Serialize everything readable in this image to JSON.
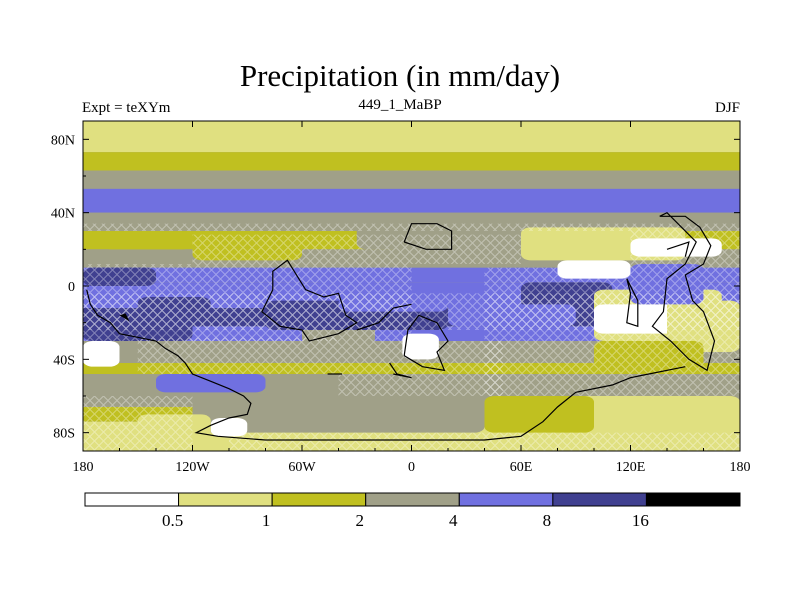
{
  "title": "Precipitation (in mm/day)",
  "left_label": "Expt = teXYm",
  "center_label": "449_1_MaBP",
  "right_label": "DJF",
  "map": {
    "lon_range": [
      -180,
      180
    ],
    "lat_range": [
      -90,
      90
    ],
    "x_ticks": [
      {
        "value": -180,
        "label": "180"
      },
      {
        "value": -120,
        "label": "120W"
      },
      {
        "value": -60,
        "label": "60W"
      },
      {
        "value": 0,
        "label": "0"
      },
      {
        "value": 60,
        "label": "60E"
      },
      {
        "value": 120,
        "label": "120E"
      },
      {
        "value": 180,
        "label": "180"
      }
    ],
    "y_ticks": [
      {
        "value": 80,
        "label": "80N"
      },
      {
        "value": 40,
        "label": "40N"
      },
      {
        "value": 0,
        "label": "0"
      },
      {
        "value": -40,
        "label": "40S"
      },
      {
        "value": -80,
        "label": "80S"
      }
    ]
  },
  "colorbar": {
    "levels": [
      "0.5",
      "1",
      "2",
      "4",
      "8",
      "16"
    ],
    "colors": [
      "#ffffff",
      "#e0e080",
      "#c0c020",
      "#a0a088",
      "#7070e0",
      "#404090",
      "#000000"
    ]
  },
  "precip_bands": [
    {
      "lat_top": 90,
      "lat_bot": 84,
      "class": 1
    },
    {
      "lat_top": 84,
      "lat_bot": 73,
      "class": 1
    },
    {
      "lat_top": 73,
      "lat_bot": 63,
      "class": 2
    },
    {
      "lat_top": 63,
      "lat_bot": 53,
      "class": 3
    },
    {
      "lat_top": 53,
      "lat_bot": 40,
      "class": 4
    },
    {
      "lat_top": 40,
      "lat_bot": 30,
      "class": 3
    },
    {
      "lat_top": 30,
      "lat_bot": 20,
      "class": 2
    },
    {
      "lat_top": 20,
      "lat_bot": 10,
      "class": 3
    },
    {
      "lat_top": 10,
      "lat_bot": 2,
      "class": 4
    },
    {
      "lat_top": 2,
      "lat_bot": -12,
      "class": 4
    },
    {
      "lat_top": -12,
      "lat_bot": -22,
      "class": 5
    },
    {
      "lat_top": -22,
      "lat_bot": -30,
      "class": 4
    },
    {
      "lat_top": -30,
      "lat_bot": -42,
      "class": 3
    },
    {
      "lat_top": -42,
      "lat_bot": -48,
      "class": 2
    },
    {
      "lat_top": -48,
      "lat_bot": -56,
      "class": 3
    },
    {
      "lat_top": -56,
      "lat_bot": -66,
      "class": 3
    },
    {
      "lat_top": -66,
      "lat_bot": -74,
      "class": 2
    },
    {
      "lat_top": -74,
      "lat_bot": -84,
      "class": 1
    },
    {
      "lat_top": -84,
      "lat_bot": -90,
      "class": 1
    }
  ],
  "precip_patches": [
    {
      "lon": [
        -180,
        -160
      ],
      "lat": [
        -30,
        -44
      ],
      "class": 0
    },
    {
      "lon": [
        -5,
        15
      ],
      "lat": [
        -26,
        -40
      ],
      "class": 0
    },
    {
      "lon": [
        -60,
        -20
      ],
      "lat": [
        -12,
        -32
      ],
      "class": 3
    },
    {
      "lon": [
        -180,
        -120
      ],
      "lat": [
        -14,
        -30
      ],
      "class": 5
    },
    {
      "lon": [
        -80,
        20
      ],
      "lat": [
        -8,
        -24
      ],
      "class": 5
    },
    {
      "lon": [
        60,
        110
      ],
      "lat": [
        2,
        -12
      ],
      "class": 5
    },
    {
      "lon": [
        -180,
        -140
      ],
      "lat": [
        10,
        0
      ],
      "class": 5
    },
    {
      "lon": [
        -40,
        20
      ],
      "lat": [
        -6,
        -14
      ],
      "class": 4
    },
    {
      "lon": [
        -140,
        -80
      ],
      "lat": [
        -48,
        -58
      ],
      "class": 4
    },
    {
      "lon": [
        -120,
        40
      ],
      "lat": [
        -60,
        -80
      ],
      "class": 3
    },
    {
      "lon": [
        -110,
        -90
      ],
      "lat": [
        -72,
        -82
      ],
      "class": 0
    },
    {
      "lon": [
        -150,
        -110
      ],
      "lat": [
        -70,
        -86
      ],
      "class": 1
    },
    {
      "lon": [
        80,
        180
      ],
      "lat": [
        -60,
        -86
      ],
      "class": 1
    },
    {
      "lon": [
        40,
        100
      ],
      "lat": [
        -60,
        -80
      ],
      "class": 2
    },
    {
      "lon": [
        -170,
        -120
      ],
      "lat": [
        30,
        20
      ],
      "class": 2
    },
    {
      "lon": [
        -120,
        -60
      ],
      "lat": [
        30,
        14
      ],
      "class": 2
    },
    {
      "lon": [
        -30,
        40
      ],
      "lat": [
        34,
        20
      ],
      "class": 3
    },
    {
      "lon": [
        -10,
        70
      ],
      "lat": [
        32,
        12
      ],
      "class": 3
    },
    {
      "lon": [
        60,
        150
      ],
      "lat": [
        32,
        14
      ],
      "class": 1
    },
    {
      "lon": [
        80,
        120
      ],
      "lat": [
        14,
        4
      ],
      "class": 0
    },
    {
      "lon": [
        100,
        170
      ],
      "lat": [
        -2,
        -30
      ],
      "class": 1
    },
    {
      "lon": [
        100,
        160
      ],
      "lat": [
        -10,
        -26
      ],
      "class": 0
    },
    {
      "lon": [
        140,
        180
      ],
      "lat": [
        -8,
        -36
      ],
      "class": 1
    },
    {
      "lon": [
        120,
        170
      ],
      "lat": [
        26,
        16
      ],
      "class": 0
    },
    {
      "lon": [
        100,
        160
      ],
      "lat": [
        -30,
        -46
      ],
      "class": 2
    },
    {
      "lon": [
        120,
        160
      ],
      "lat": [
        12,
        -10
      ],
      "class": 4
    },
    {
      "lon": [
        -150,
        -110
      ],
      "lat": [
        -6,
        -22
      ],
      "class": 5
    },
    {
      "lon": [
        -50,
        -20
      ],
      "lat": [
        4,
        -8
      ],
      "class": 4
    },
    {
      "lon": [
        20,
        90
      ],
      "lat": [
        -10,
        -22
      ],
      "class": 4
    }
  ],
  "hatched_regions": [
    {
      "lon": [
        -180,
        180
      ],
      "lat": [
        -4,
        -24
      ]
    },
    {
      "lon": [
        -180,
        0
      ],
      "lat": [
        12,
        -30
      ]
    },
    {
      "lon": [
        -150,
        -40
      ],
      "lat": [
        -28,
        -48
      ]
    },
    {
      "lon": [
        -120,
        60
      ],
      "lat": [
        28,
        12
      ]
    },
    {
      "lon": [
        -40,
        50
      ],
      "lat": [
        -30,
        -60
      ]
    },
    {
      "lon": [
        40,
        180
      ],
      "lat": [
        10,
        -60
      ]
    },
    {
      "lon": [
        -180,
        -120
      ],
      "lat": [
        -60,
        -90
      ]
    },
    {
      "lon": [
        -100,
        180
      ],
      "lat": [
        -80,
        -90
      ]
    },
    {
      "lon": [
        120,
        180
      ],
      "lat": [
        30,
        10
      ]
    },
    {
      "lon": [
        -180,
        180
      ],
      "lat": [
        34,
        30
      ]
    }
  ],
  "outlines": [
    {
      "points": [
        [
          -178,
          -2
        ],
        [
          -176,
          -10
        ],
        [
          -172,
          -16
        ],
        [
          -165,
          -20
        ],
        [
          -160,
          -26
        ],
        [
          -150,
          -28
        ],
        [
          -140,
          -30
        ],
        [
          -135,
          -34
        ],
        [
          -128,
          -38
        ],
        [
          -124,
          -42
        ],
        [
          -120,
          -48
        ],
        [
          -110,
          -52
        ],
        [
          -100,
          -56
        ],
        [
          -92,
          -60
        ],
        [
          -88,
          -64
        ],
        [
          -90,
          -70
        ],
        [
          -100,
          -72
        ],
        [
          -110,
          -76
        ],
        [
          -118,
          -80
        ],
        [
          -106,
          -82
        ],
        [
          -80,
          -84
        ],
        [
          -40,
          -84
        ],
        [
          0,
          -84
        ],
        [
          40,
          -84
        ],
        [
          60,
          -82
        ],
        [
          72,
          -74
        ],
        [
          80,
          -66
        ],
        [
          90,
          -58
        ],
        [
          110,
          -54
        ],
        [
          120,
          -50
        ],
        [
          130,
          -48
        ],
        [
          150,
          -44
        ]
      ]
    },
    {
      "points": [
        [
          -76,
          -2
        ],
        [
          -76,
          8
        ],
        [
          -68,
          14
        ],
        [
          -58,
          -2
        ],
        [
          -48,
          -6
        ],
        [
          -40,
          -4
        ],
        [
          -36,
          -16
        ],
        [
          -30,
          -20
        ],
        [
          -40,
          -26
        ],
        [
          -56,
          -30
        ],
        [
          -60,
          -24
        ],
        [
          -72,
          -22
        ],
        [
          -82,
          -14
        ],
        [
          -76,
          -2
        ]
      ]
    },
    {
      "points": [
        [
          -4,
          24
        ],
        [
          0,
          34
        ],
        [
          14,
          34
        ],
        [
          22,
          30
        ],
        [
          22,
          20
        ],
        [
          8,
          20
        ],
        [
          -4,
          24
        ]
      ]
    },
    {
      "points": [
        [
          -2,
          -24
        ],
        [
          -4,
          -38
        ],
        [
          6,
          -44
        ],
        [
          18,
          -46
        ],
        [
          14,
          -36
        ],
        [
          20,
          -30
        ],
        [
          14,
          -20
        ],
        [
          4,
          -16
        ],
        [
          -2,
          -24
        ]
      ]
    },
    {
      "points": [
        [
          -12,
          -42
        ],
        [
          -8,
          -48
        ],
        [
          0,
          -50
        ],
        [
          -10,
          -48
        ]
      ]
    },
    {
      "points": [
        [
          -46,
          -48
        ],
        [
          -38,
          -48
        ]
      ]
    },
    {
      "points": [
        [
          118,
          4
        ],
        [
          120,
          -4
        ],
        [
          118,
          -20
        ],
        [
          124,
          -22
        ],
        [
          124,
          -8
        ],
        [
          118,
          4
        ]
      ]
    },
    {
      "points": [
        [
          136,
          38
        ],
        [
          140,
          40
        ],
        [
          148,
          32
        ],
        [
          156,
          24
        ],
        [
          150,
          12
        ],
        [
          140,
          4
        ],
        [
          138,
          -14
        ],
        [
          132,
          -22
        ],
        [
          142,
          -30
        ],
        [
          152,
          -40
        ],
        [
          162,
          -46
        ],
        [
          166,
          -30
        ],
        [
          160,
          -14
        ],
        [
          154,
          -8
        ],
        [
          150,
          6
        ],
        [
          160,
          12
        ],
        [
          164,
          22
        ],
        [
          158,
          32
        ],
        [
          150,
          38
        ],
        [
          136,
          38
        ]
      ]
    },
    {
      "points": [
        [
          140,
          20
        ],
        [
          146,
          22
        ],
        [
          152,
          24
        ],
        [
          150,
          16
        ]
      ]
    },
    {
      "points": [
        [
          -30,
          -24
        ],
        [
          -18,
          -20
        ],
        [
          -10,
          -12
        ],
        [
          0,
          -10
        ]
      ]
    }
  ]
}
